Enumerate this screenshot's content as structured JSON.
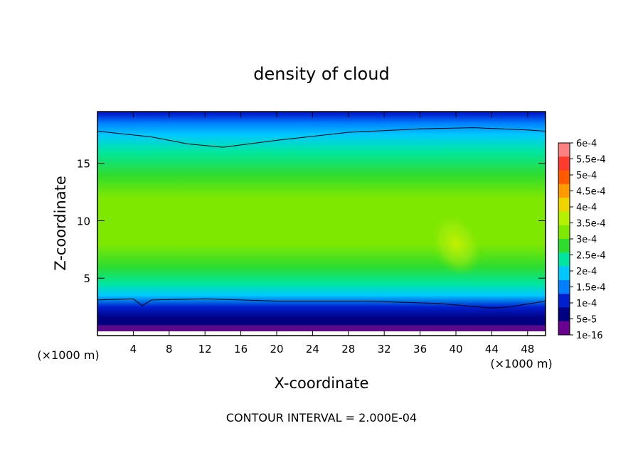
{
  "chart_data": {
    "type": "heatmap",
    "title": "density of cloud",
    "xlabel": "X-coordinate",
    "ylabel": "Z-coordinate",
    "x_unit": "(×1000 m)",
    "x_unit_right": "(×1000 m)",
    "xlim": [
      0,
      50
    ],
    "ylim": [
      0,
      19.5
    ],
    "x_ticks": [
      4,
      8,
      12,
      16,
      20,
      24,
      28,
      32,
      36,
      40,
      44,
      48
    ],
    "y_ticks": [
      5,
      10,
      15
    ],
    "contour_note": "CONTOUR INTERVAL = 2.000E-04",
    "colorbar": {
      "labels": [
        "6e-4",
        "5.5e-4",
        "5e-4",
        "4.5e-4",
        "4e-4",
        "3.5e-4",
        "3e-4",
        "2.5e-4",
        "2e-4",
        "1.5e-4",
        "1e-4",
        "5e-5",
        "1e-16"
      ],
      "colors": [
        "#ff8080",
        "#ff3b2e",
        "#ff5a00",
        "#ff9a00",
        "#f0d400",
        "#b4f000",
        "#7ee800",
        "#2edc2e",
        "#00e6a0",
        "#00c8ff",
        "#0080ff",
        "#0020d0",
        "#000080",
        "#6a0090"
      ]
    },
    "contour_lines": [
      {
        "level": 0.0002,
        "points": [
          [
            0,
            17.8
          ],
          [
            6,
            17.3
          ],
          [
            10,
            16.7
          ],
          [
            14,
            16.4
          ],
          [
            20,
            17.0
          ],
          [
            28,
            17.7
          ],
          [
            36,
            18.0
          ],
          [
            42,
            18.1
          ],
          [
            48,
            17.9
          ],
          [
            50,
            17.8
          ]
        ]
      },
      {
        "level": 0.0002,
        "points": [
          [
            0,
            3.1
          ],
          [
            4,
            3.2
          ],
          [
            5,
            2.6
          ],
          [
            6,
            3.1
          ],
          [
            12,
            3.2
          ],
          [
            20,
            3.0
          ],
          [
            30,
            3.0
          ],
          [
            38,
            2.8
          ],
          [
            44,
            2.4
          ],
          [
            46,
            2.5
          ],
          [
            50,
            3.0
          ]
        ]
      }
    ],
    "field_samples": {
      "z": [
        0.5,
        1.5,
        2.5,
        3.5,
        4.5,
        6,
        8,
        10,
        12,
        14,
        16,
        17.5,
        18.5,
        19.3
      ],
      "values": [
        2e-05,
        5e-05,
        0.0001,
        0.0002,
        0.00025,
        0.0003,
        0.00032,
        0.00033,
        0.00031,
        0.00029,
        0.00025,
        0.0002,
        0.00013,
        7e-05
      ]
    },
    "local_maximum": {
      "x": 40,
      "z": 8,
      "value": 0.00038
    }
  }
}
